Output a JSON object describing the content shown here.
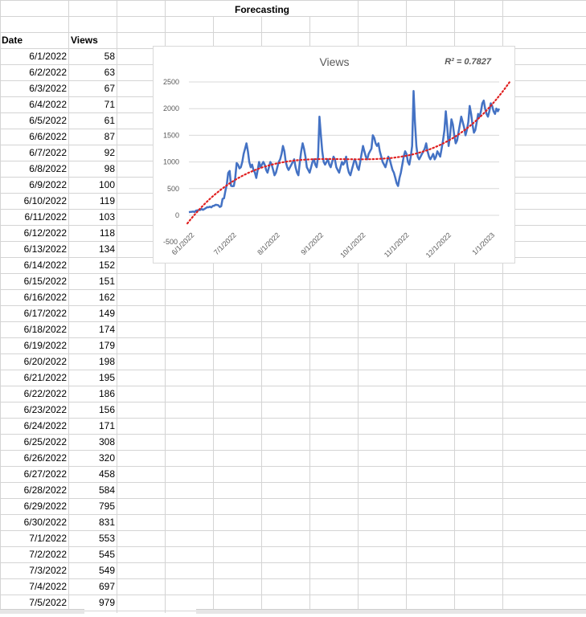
{
  "sheet": {
    "title": "Forecasting",
    "headers": {
      "date": "Date",
      "views": "Views"
    },
    "rows": [
      {
        "date": "6/1/2022",
        "views": "58"
      },
      {
        "date": "6/2/2022",
        "views": "63"
      },
      {
        "date": "6/3/2022",
        "views": "67"
      },
      {
        "date": "6/4/2022",
        "views": "71"
      },
      {
        "date": "6/5/2022",
        "views": "61"
      },
      {
        "date": "6/6/2022",
        "views": "87"
      },
      {
        "date": "6/7/2022",
        "views": "92"
      },
      {
        "date": "6/8/2022",
        "views": "98"
      },
      {
        "date": "6/9/2022",
        "views": "100"
      },
      {
        "date": "6/10/2022",
        "views": "119"
      },
      {
        "date": "6/11/2022",
        "views": "103"
      },
      {
        "date": "6/12/2022",
        "views": "118"
      },
      {
        "date": "6/13/2022",
        "views": "134"
      },
      {
        "date": "6/14/2022",
        "views": "152"
      },
      {
        "date": "6/15/2022",
        "views": "151"
      },
      {
        "date": "6/16/2022",
        "views": "162"
      },
      {
        "date": "6/17/2022",
        "views": "149"
      },
      {
        "date": "6/18/2022",
        "views": "174"
      },
      {
        "date": "6/19/2022",
        "views": "179"
      },
      {
        "date": "6/20/2022",
        "views": "198"
      },
      {
        "date": "6/21/2022",
        "views": "195"
      },
      {
        "date": "6/22/2022",
        "views": "186"
      },
      {
        "date": "6/23/2022",
        "views": "156"
      },
      {
        "date": "6/24/2022",
        "views": "171"
      },
      {
        "date": "6/25/2022",
        "views": "308"
      },
      {
        "date": "6/26/2022",
        "views": "320"
      },
      {
        "date": "6/27/2022",
        "views": "458"
      },
      {
        "date": "6/28/2022",
        "views": "584"
      },
      {
        "date": "6/29/2022",
        "views": "795"
      },
      {
        "date": "6/30/2022",
        "views": "831"
      },
      {
        "date": "7/1/2022",
        "views": "553"
      },
      {
        "date": "7/2/2022",
        "views": "545"
      },
      {
        "date": "7/3/2022",
        "views": "549"
      },
      {
        "date": "7/4/2022",
        "views": "697"
      },
      {
        "date": "7/5/2022",
        "views": "979"
      }
    ]
  },
  "chart_data": {
    "type": "line",
    "title": "Views",
    "r2_label": "R² = 0.7827",
    "ylim": [
      0,
      2500
    ],
    "yticks": [
      "0",
      "500",
      "1000",
      "1500",
      "2000",
      "2500"
    ],
    "xticks": [
      "6/1/2022",
      "7/1/2022",
      "8/1/2022",
      "9/1/2022",
      "10/1/2022",
      "11/1/2022",
      "12/1/2022",
      "1/1/2023"
    ],
    "x_first_tick_label_overlap": "-500",
    "grid": "horizontal",
    "series": [
      {
        "values": [
          58,
          63,
          67,
          71,
          61,
          87,
          92,
          98,
          100,
          119,
          103,
          118,
          134,
          152,
          151,
          162,
          149,
          174,
          179,
          198,
          195,
          186,
          156,
          171,
          308,
          320,
          458,
          584,
          795,
          831,
          553,
          545,
          549,
          697,
          979,
          950,
          880,
          900,
          1000,
          1150,
          1250,
          1350,
          1200,
          1000,
          900,
          950,
          850,
          800,
          700,
          850,
          1000,
          900,
          950,
          1000,
          950,
          850,
          800,
          900,
          1000,
          950,
          850,
          750,
          800,
          900,
          1000,
          1050,
          1150,
          1300,
          1200,
          1000,
          900,
          850,
          900,
          950,
          1000,
          1050,
          900,
          800,
          750,
          1000,
          1200,
          1350,
          1250,
          1100,
          900,
          850,
          800,
          900,
          1000,
          1050,
          950,
          900,
          1100,
          1850,
          1500,
          1200,
          1000,
          950,
          1000,
          1050,
          950,
          900,
          1000,
          1100,
          1050,
          900,
          850,
          800,
          900,
          1000,
          950,
          1000,
          1100,
          900,
          800,
          750,
          850,
          950,
          1050,
          1000,
          900,
          850,
          1000,
          1150,
          1300,
          1200,
          1100,
          1050,
          1150,
          1200,
          1250,
          1500,
          1450,
          1350,
          1300,
          1350,
          1200,
          1100,
          1000,
          950,
          900,
          1000,
          1100,
          1050,
          950,
          850,
          800,
          700,
          600,
          550,
          700,
          800,
          950,
          1100,
          1200,
          1150,
          1000,
          950,
          1100,
          1300,
          2330,
          1750,
          1300,
          1100,
          1050,
          1100,
          1150,
          1200,
          1250,
          1350,
          1200,
          1100,
          1050,
          1100,
          1150,
          1050,
          1100,
          1200,
          1150,
          1100,
          1250,
          1400,
          1600,
          1950,
          1650,
          1300,
          1500,
          1800,
          1700,
          1500,
          1350,
          1400,
          1550,
          1700,
          1850,
          1750,
          1650,
          1500,
          1600,
          1750,
          2050,
          1900,
          1700,
          1550,
          1600,
          1750,
          1900,
          1850,
          1950,
          2100,
          2150,
          2000,
          1900,
          1850,
          1950,
          2100,
          2050,
          1950,
          1900,
          2000,
          1950,
          2000
        ]
      }
    ],
    "trendline": {
      "style": "dotted",
      "color": "#e02020",
      "kind": "polynomial"
    },
    "line_color": "#4472c4"
  }
}
